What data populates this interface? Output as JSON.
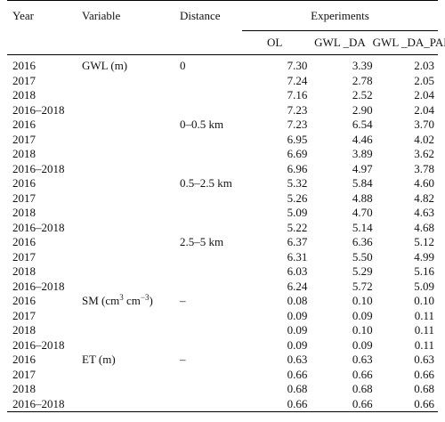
{
  "headers": {
    "year": "Year",
    "variable": "Variable",
    "distance": "Distance",
    "experiments": "Experiments",
    "ol": "OL",
    "gwl_da": "GWL _DA",
    "gwl_da_par": "GWL _DA_PAR"
  },
  "sm_label": {
    "prefix": "SM (cm",
    "sup1": "3",
    "mid": " cm",
    "sup2": "−3",
    "suffix": ")"
  },
  "rows": [
    {
      "year": "2016",
      "variable": "GWL (m)",
      "distance": "0",
      "ol": "7.30",
      "da": "3.39",
      "dap": "2.03"
    },
    {
      "year": "2017",
      "variable": "",
      "distance": "",
      "ol": "7.24",
      "da": "2.78",
      "dap": "2.05"
    },
    {
      "year": "2018",
      "variable": "",
      "distance": "",
      "ol": "7.16",
      "da": "2.52",
      "dap": "2.04"
    },
    {
      "year": "2016–2018",
      "variable": "",
      "distance": "",
      "ol": "7.23",
      "da": "2.90",
      "dap": "2.04"
    },
    {
      "year": "2016",
      "variable": "",
      "distance": "0–0.5 km",
      "ol": "7.23",
      "da": "6.54",
      "dap": "3.70"
    },
    {
      "year": "2017",
      "variable": "",
      "distance": "",
      "ol": "6.95",
      "da": "4.46",
      "dap": "4.02"
    },
    {
      "year": "2018",
      "variable": "",
      "distance": "",
      "ol": "6.69",
      "da": "3.89",
      "dap": "3.62"
    },
    {
      "year": "2016–2018",
      "variable": "",
      "distance": "",
      "ol": "6.96",
      "da": "4.97",
      "dap": "3.78"
    },
    {
      "year": "2016",
      "variable": "",
      "distance": "0.5–2.5 km",
      "ol": "5.32",
      "da": "5.84",
      "dap": "4.60"
    },
    {
      "year": "2017",
      "variable": "",
      "distance": "",
      "ol": "5.26",
      "da": "4.88",
      "dap": "4.82"
    },
    {
      "year": "2018",
      "variable": "",
      "distance": "",
      "ol": "5.09",
      "da": "4.70",
      "dap": "4.63"
    },
    {
      "year": "2016–2018",
      "variable": "",
      "distance": "",
      "ol": "5.22",
      "da": "5.14",
      "dap": "4.68"
    },
    {
      "year": "2016",
      "variable": "",
      "distance": "2.5–5 km",
      "ol": "6.37",
      "da": "6.36",
      "dap": "5.12"
    },
    {
      "year": "2017",
      "variable": "",
      "distance": "",
      "ol": "6.31",
      "da": "5.50",
      "dap": "4.99"
    },
    {
      "year": "2018",
      "variable": "",
      "distance": "",
      "ol": "6.03",
      "da": "5.29",
      "dap": "5.16"
    },
    {
      "year": "2016–2018",
      "variable": "",
      "distance": "",
      "ol": "6.24",
      "da": "5.72",
      "dap": "5.09"
    },
    {
      "year": "2016",
      "variable": "__SM__",
      "distance": "–",
      "ol": "0.08",
      "da": "0.10",
      "dap": "0.10"
    },
    {
      "year": "2017",
      "variable": "",
      "distance": "",
      "ol": "0.09",
      "da": "0.09",
      "dap": "0.11"
    },
    {
      "year": "2018",
      "variable": "",
      "distance": "",
      "ol": "0.09",
      "da": "0.10",
      "dap": "0.11"
    },
    {
      "year": "2016–2018",
      "variable": "",
      "distance": "",
      "ol": "0.09",
      "da": "0.09",
      "dap": "0.11"
    },
    {
      "year": "2016",
      "variable": "ET (m)",
      "distance": "–",
      "ol": "0.63",
      "da": "0.63",
      "dap": "0.63"
    },
    {
      "year": "2017",
      "variable": "",
      "distance": "",
      "ol": "0.66",
      "da": "0.66",
      "dap": "0.66"
    },
    {
      "year": "2018",
      "variable": "",
      "distance": "",
      "ol": "0.68",
      "da": "0.68",
      "dap": "0.68"
    },
    {
      "year": "2016–2018",
      "variable": "",
      "distance": "",
      "ol": "0.66",
      "da": "0.66",
      "dap": "0.66"
    }
  ]
}
